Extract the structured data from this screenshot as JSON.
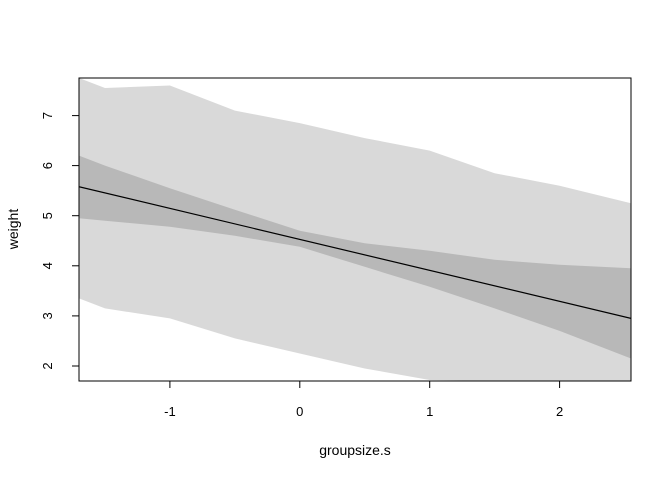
{
  "chart_data": {
    "type": "area",
    "title": "",
    "xlabel": "groupsize.s",
    "ylabel": "weight",
    "xlim": [
      -1.7,
      2.55
    ],
    "ylim": [
      1.7,
      7.75
    ],
    "xticks": [
      -1,
      0,
      1,
      2
    ],
    "yticks": [
      2,
      3,
      4,
      5,
      6,
      7
    ],
    "x_tick_labels": [
      "-1",
      "0",
      "1",
      "2"
    ],
    "y_tick_labels": [
      "2",
      "3",
      "4",
      "5",
      "6",
      "7"
    ],
    "grid": false,
    "legend": "none",
    "colors": {
      "prediction_band": "#d9d9d9",
      "mean_band": "#b8b8b8",
      "mean_line": "#000000",
      "frame": "#000000"
    },
    "mean_line": {
      "x": [
        -1.7,
        2.55
      ],
      "y": [
        5.58,
        2.95
      ]
    },
    "mean_interval": {
      "x": [
        -1.7,
        -1.5,
        -1.0,
        -0.5,
        0.0,
        0.5,
        1.0,
        1.5,
        2.0,
        2.55
      ],
      "lower": [
        4.95,
        4.9,
        4.78,
        4.6,
        4.38,
        3.98,
        3.58,
        3.15,
        2.7,
        2.15
      ],
      "upper": [
        6.2,
        6.0,
        5.55,
        5.12,
        4.7,
        4.45,
        4.3,
        4.12,
        4.02,
        3.95
      ]
    },
    "prediction_interval": {
      "x": [
        -1.7,
        -1.5,
        -1.0,
        -0.5,
        0.0,
        0.5,
        1.0,
        1.5,
        2.0,
        2.55
      ],
      "lower": [
        3.35,
        3.15,
        2.95,
        2.55,
        2.25,
        1.95,
        1.72,
        1.7,
        1.7,
        1.7
      ],
      "upper": [
        7.75,
        7.55,
        7.6,
        7.1,
        6.85,
        6.55,
        6.3,
        5.85,
        5.6,
        5.25
      ]
    }
  }
}
